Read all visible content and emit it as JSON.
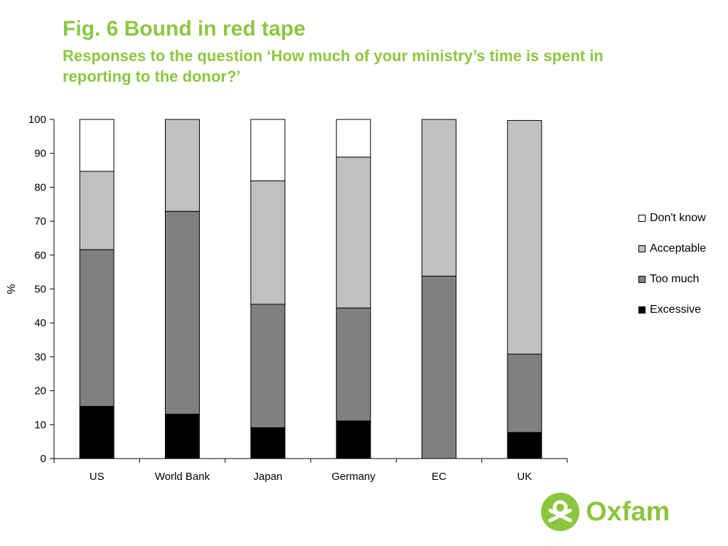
{
  "header": {
    "title": "Fig. 6 Bound in red tape",
    "subtitle": "Responses to the question ‘How much of your ministry’s time is spent in reporting to the donor?’"
  },
  "colors": {
    "accent": "#8cc63f",
    "excessive": "#000000",
    "too_much": "#808080",
    "acceptable": "#c0c0c0",
    "dont_know": "#ffffff"
  },
  "logo": {
    "text": "Oxfam"
  },
  "chart_data": {
    "type": "bar",
    "stacked": true,
    "categories": [
      "US",
      "World Bank",
      "Japan",
      "Germany",
      "EC",
      "UK"
    ],
    "series": [
      {
        "name": "Excessive",
        "values": [
          15.4,
          13.1,
          9.1,
          11.1,
          0,
          7.7
        ]
      },
      {
        "name": "Too much",
        "values": [
          46.2,
          59.8,
          36.4,
          33.3,
          53.8,
          23.1
        ]
      },
      {
        "name": "Acceptable",
        "values": [
          23.1,
          27.1,
          36.4,
          44.5,
          46.2,
          68.9
        ]
      },
      {
        "name": "Don't know",
        "values": [
          15.3,
          0,
          18.1,
          11.1,
          0,
          0
        ]
      }
    ],
    "title": "",
    "xlabel": "",
    "ylabel": "%",
    "ylim": [
      0,
      100
    ],
    "yticks": [
      "0",
      "10",
      "20",
      "30",
      "40",
      "50",
      "60",
      "70",
      "80",
      "90",
      "100"
    ],
    "grid": false,
    "legend": "right",
    "legend_order": [
      "Don't know",
      "Acceptable",
      "Too much",
      "Excessive"
    ]
  }
}
